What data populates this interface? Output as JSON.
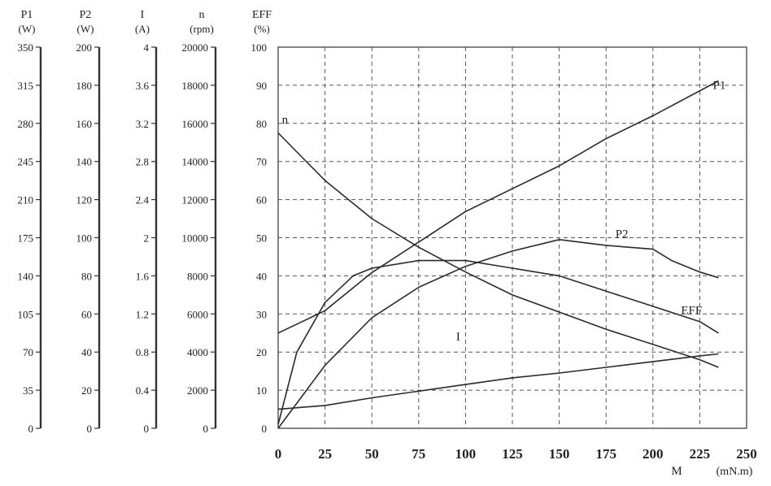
{
  "chart_data": {
    "type": "line",
    "x": {
      "label": "M",
      "unit": "(mN.m)",
      "range": [
        0,
        250
      ],
      "ticks": [
        0,
        25,
        50,
        75,
        100,
        125,
        150,
        175,
        200,
        225,
        250
      ]
    },
    "axes": [
      {
        "id": "P1",
        "label": "P1",
        "unit": "(W)",
        "range": [
          0,
          350
        ],
        "ticks": [
          "0",
          "35",
          "70",
          "105",
          "140",
          "175",
          "210",
          "245",
          "280",
          "315",
          "350"
        ]
      },
      {
        "id": "P2",
        "label": "P2",
        "unit": "(W)",
        "range": [
          0,
          200
        ],
        "ticks": [
          "0",
          "20",
          "40",
          "60",
          "80",
          "100",
          "120",
          "140",
          "160",
          "180",
          "200"
        ]
      },
      {
        "id": "I",
        "label": "I",
        "unit": "(A)",
        "range": [
          0,
          4
        ],
        "ticks": [
          "0",
          "0.4",
          "0.8",
          "1.2",
          "1.6",
          "2",
          "2.4",
          "2.8",
          "3.2",
          "3.6",
          "4"
        ]
      },
      {
        "id": "n",
        "label": "n",
        "unit": "(rpm)",
        "range": [
          0,
          20000
        ],
        "ticks": [
          "0",
          "2000",
          "4000",
          "6000",
          "8000",
          "10000",
          "12000",
          "14000",
          "16000",
          "18000",
          "20000"
        ]
      },
      {
        "id": "EFF",
        "label": "EFF",
        "unit": "(%)",
        "range": [
          0,
          100
        ],
        "ticks": [
          "0",
          "10",
          "20",
          "30",
          "40",
          "50",
          "60",
          "70",
          "80",
          "90",
          "100"
        ]
      }
    ],
    "grid": true,
    "series": [
      {
        "name": "P1",
        "axis": "P1",
        "label_at": [
          232,
          89
        ],
        "points": [
          [
            0,
            87.5
          ],
          [
            25,
            108
          ],
          [
            50,
            143
          ],
          [
            75,
            171
          ],
          [
            100,
            199
          ],
          [
            125,
            220
          ],
          [
            150,
            241
          ],
          [
            175,
            266
          ],
          [
            200,
            287
          ],
          [
            235,
            319
          ]
        ]
      },
      {
        "name": "P2",
        "axis": "P2",
        "label_at": [
          180,
          50
        ],
        "points": [
          [
            0,
            0
          ],
          [
            25,
            33
          ],
          [
            50,
            58
          ],
          [
            75,
            74
          ],
          [
            100,
            85
          ],
          [
            125,
            93
          ],
          [
            150,
            99
          ],
          [
            175,
            96
          ],
          [
            200,
            94
          ],
          [
            210,
            88
          ],
          [
            225,
            82
          ],
          [
            235,
            79
          ]
        ]
      },
      {
        "name": "I",
        "axis": "I",
        "label_at": [
          95,
          23
        ],
        "points": [
          [
            0,
            0.2
          ],
          [
            25,
            0.24
          ],
          [
            50,
            0.32
          ],
          [
            75,
            0.39
          ],
          [
            100,
            0.46
          ],
          [
            125,
            0.53
          ],
          [
            150,
            0.58
          ],
          [
            175,
            0.64
          ],
          [
            200,
            0.7
          ],
          [
            225,
            0.76
          ],
          [
            235,
            0.78
          ]
        ]
      },
      {
        "name": "n",
        "axis": "n",
        "label_at": [
          2,
          80
        ],
        "points": [
          [
            0,
            15500
          ],
          [
            10,
            14500
          ],
          [
            25,
            13000
          ],
          [
            50,
            11000
          ],
          [
            75,
            9500
          ],
          [
            100,
            8200
          ],
          [
            125,
            7000
          ],
          [
            150,
            6100
          ],
          [
            175,
            5200
          ],
          [
            200,
            4400
          ],
          [
            225,
            3600
          ],
          [
            235,
            3200
          ]
        ]
      },
      {
        "name": "EFF",
        "axis": "EFF",
        "label_at": [
          215,
          30
        ],
        "points": [
          [
            0,
            1
          ],
          [
            10,
            20
          ],
          [
            25,
            33
          ],
          [
            40,
            40
          ],
          [
            50,
            42
          ],
          [
            75,
            44
          ],
          [
            100,
            44
          ],
          [
            125,
            42
          ],
          [
            150,
            40
          ],
          [
            175,
            36
          ],
          [
            200,
            32
          ],
          [
            225,
            28
          ],
          [
            235,
            25
          ]
        ]
      }
    ]
  }
}
